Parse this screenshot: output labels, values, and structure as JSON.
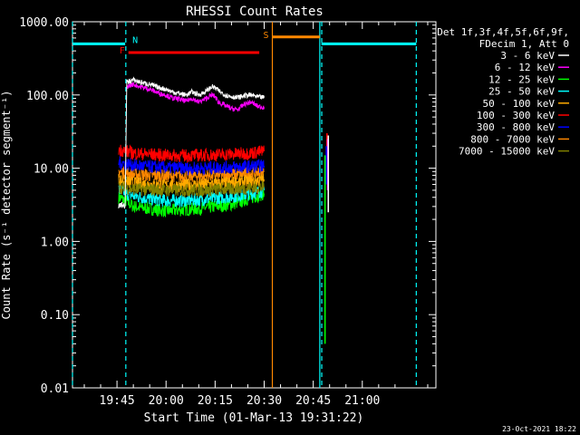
{
  "chart_data": {
    "type": "line",
    "title": "RHESSI Count Rates",
    "xlabel": "Start Time (01-Mar-13 19:31:22)",
    "ylabel": "Count Rate (s⁻¹ detector segment⁻¹)",
    "x_unit": "minutes of day (UT)",
    "xlim": [
      1171.4,
      1282.5
    ],
    "ylim": [
      0.01,
      1000
    ],
    "y_scale": "log",
    "grid": false,
    "x_ticks": [
      {
        "value": 1185,
        "label": "19:45"
      },
      {
        "value": 1200,
        "label": "20:00"
      },
      {
        "value": 1215,
        "label": "20:15"
      },
      {
        "value": 1230,
        "label": "20:30"
      },
      {
        "value": 1245,
        "label": "20:45"
      },
      {
        "value": 1260,
        "label": "21:00"
      }
    ],
    "y_ticks": [
      {
        "value": 1000,
        "label": "1000.00"
      },
      {
        "value": 100,
        "label": "100.00"
      },
      {
        "value": 10,
        "label": "10.00"
      },
      {
        "value": 1,
        "label": "1.00"
      },
      {
        "value": 0.1,
        "label": "0.10"
      },
      {
        "value": 0.01,
        "label": "0.01"
      }
    ],
    "legend_header": [
      "Det 1f,3f,4f,5f,6f,9f,",
      "FDecim 1, Att 0"
    ],
    "legend_placement": "right",
    "series": [
      {
        "name": "3 - 6 keV",
        "color": "#ffffff",
        "x": [
          1185.5,
          1186.5,
          1187.5,
          1188.0,
          1190,
          1192,
          1195,
          1198,
          1200,
          1202,
          1204,
          1206,
          1208,
          1210,
          1212,
          1214,
          1215,
          1216,
          1218,
          1220,
          1222,
          1224,
          1226,
          1228,
          1230
        ],
        "y": [
          3.0,
          3.2,
          3.0,
          150,
          160,
          150,
          140,
          125,
          120,
          110,
          105,
          100,
          110,
          100,
          110,
          130,
          125,
          115,
          100,
          95,
          92,
          98,
          100,
          94,
          92
        ]
      },
      {
        "name": "6 - 12 keV",
        "color": "#ff00ff",
        "x": [
          1188.0,
          1190,
          1192,
          1195,
          1198,
          1200,
          1202,
          1204,
          1206,
          1208,
          1210,
          1212,
          1214,
          1215,
          1216,
          1218,
          1220,
          1222,
          1224,
          1226,
          1228,
          1230
        ],
        "y": [
          130,
          140,
          130,
          120,
          105,
          100,
          90,
          88,
          82,
          90,
          80,
          88,
          100,
          95,
          80,
          72,
          65,
          63,
          75,
          80,
          70,
          68
        ]
      },
      {
        "name": "12 - 25 keV",
        "color": "#00ff00",
        "x": [
          1185.5,
          1188,
          1190,
          1195,
          1200,
          1205,
          1210,
          1215,
          1220,
          1225,
          1230
        ],
        "y": [
          4.0,
          3.5,
          3.0,
          2.8,
          2.6,
          2.7,
          2.8,
          3.0,
          3.2,
          3.8,
          4.5
        ]
      },
      {
        "name": "25 - 50 keV",
        "color": "#00ffff",
        "x": [
          1185.5,
          1188,
          1190,
          1195,
          1200,
          1205,
          1210,
          1215,
          1220,
          1225,
          1230
        ],
        "y": [
          5.0,
          4.5,
          4.2,
          3.8,
          3.6,
          3.6,
          3.7,
          3.9,
          4.1,
          4.4,
          5.0
        ]
      },
      {
        "name": "50 - 100 keV",
        "color": "#ffaa00",
        "x": [
          1185.5,
          1188,
          1190,
          1195,
          1200,
          1205,
          1210,
          1215,
          1220,
          1225,
          1230
        ],
        "y": [
          7.0,
          6.5,
          6.2,
          6.0,
          5.8,
          5.8,
          5.9,
          6.1,
          6.3,
          6.6,
          7.0
        ]
      },
      {
        "name": "100 - 300 keV",
        "color": "#ff0000",
        "x": [
          1185.5,
          1188,
          1190,
          1195,
          1200,
          1205,
          1210,
          1215,
          1220,
          1225,
          1230
        ],
        "y": [
          18,
          17,
          16,
          15.5,
          15,
          14.8,
          15,
          15.2,
          15.5,
          16,
          17
        ]
      },
      {
        "name": "300 - 800 keV",
        "color": "#0000ff",
        "x": [
          1185.5,
          1188,
          1190,
          1195,
          1200,
          1205,
          1210,
          1215,
          1220,
          1225,
          1230
        ],
        "y": [
          12,
          11.5,
          11,
          10.5,
          10.2,
          10,
          10,
          10.2,
          10.3,
          10.5,
          10.8
        ]
      },
      {
        "name": "800 - 7000 keV",
        "color": "#ff8800",
        "x": [
          1185.5,
          1188,
          1190,
          1195,
          1200,
          1205,
          1210,
          1215,
          1220,
          1225,
          1230
        ],
        "y": [
          9,
          8.5,
          8.2,
          8,
          7.8,
          7.8,
          7.9,
          8,
          8.2,
          8.5,
          9
        ]
      },
      {
        "name": "7000 - 15000 keV",
        "color": "#808000",
        "x": [
          1185.5,
          1190,
          1200,
          1210,
          1220,
          1230
        ],
        "y": [
          5.5,
          5.2,
          5.0,
          5.0,
          5.2,
          5.5
        ]
      }
    ],
    "spikes": [
      {
        "color": "#ff0000",
        "x": 1249.2,
        "y_range": [
          8,
          30
        ]
      },
      {
        "color": "#ff00ff",
        "x": 1249.4,
        "y_range": [
          5,
          25
        ]
      },
      {
        "color": "#0000ff",
        "x": 1249.0,
        "y_range": [
          6,
          20
        ]
      },
      {
        "color": "#ffffff",
        "x": 1249.6,
        "y_range": [
          2.5,
          28
        ]
      },
      {
        "color": "#00ff00",
        "x": 1248.6,
        "y_range": [
          0.04,
          15
        ]
      }
    ],
    "flag_bars": [
      {
        "label": "N",
        "color": "#00ffff",
        "segments": [
          [
            1171.4,
            1187.5
          ],
          [
            1247.5,
            1276.5
          ]
        ],
        "y": 500
      },
      {
        "label": "F",
        "color": "#ff0000",
        "segments": [
          [
            1188.5,
            1228.5
          ]
        ],
        "y": 380
      },
      {
        "label": "S",
        "color": "#ff8800",
        "segments": [
          [
            1232.5,
            1247.0
          ]
        ],
        "y": 620
      }
    ],
    "vertical_lines": [
      {
        "color": "#00ffff",
        "x": 1171.4,
        "style": "dashed"
      },
      {
        "color": "#00ffff",
        "x": 1187.7,
        "style": "dashed"
      },
      {
        "color": "#ff8800",
        "x": 1232.5,
        "style": "solid"
      },
      {
        "color": "#00ffff",
        "x": 1247.0,
        "style": "solid"
      },
      {
        "color": "#00ffff",
        "x": 1247.6,
        "style": "dashed"
      },
      {
        "color": "#00ffff",
        "x": 1276.5,
        "style": "dashed"
      }
    ]
  },
  "footer_timestamp": "23-Oct-2021 18:22"
}
